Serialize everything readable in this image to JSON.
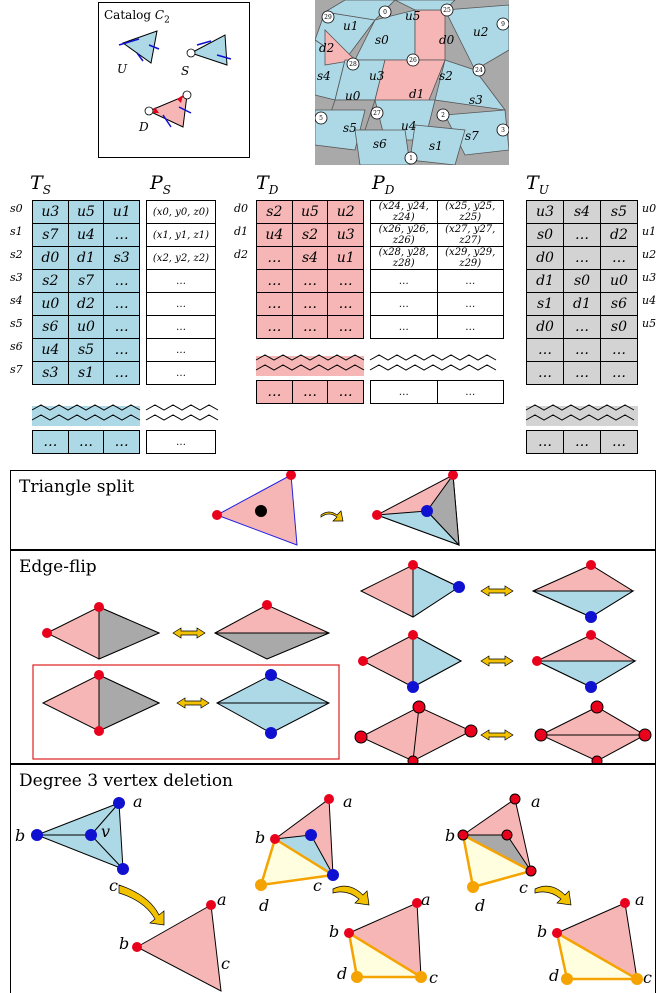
{
  "catalog": {
    "title_main": "Catalog ",
    "title_sub": "C",
    "title_subscript": "2",
    "labels": [
      "U",
      "S",
      "D"
    ]
  },
  "mesh": {
    "face_labels": [
      "u1",
      "s0",
      "u5",
      "d0",
      "u2",
      "d2",
      "s4",
      "u3",
      "s2",
      "d1",
      "s3",
      "u0",
      "s5",
      "u4",
      "s7",
      "s6",
      "s1"
    ],
    "vertex_labels": [
      "29",
      "0",
      "25",
      "9",
      "28",
      "26",
      "24",
      "27",
      "2",
      "5",
      "3",
      "1"
    ]
  },
  "tables": {
    "TS": {
      "name": "T",
      "sub": "S",
      "row_labels": [
        "s0",
        "s1",
        "s2",
        "s3",
        "s4",
        "s5",
        "s6",
        "s7"
      ],
      "rows": [
        [
          "u3",
          "u5",
          "u1"
        ],
        [
          "s7",
          "u4",
          "…"
        ],
        [
          "d0",
          "d1",
          "s3"
        ],
        [
          "s2",
          "s7",
          "…"
        ],
        [
          "u0",
          "d2",
          "…"
        ],
        [
          "s6",
          "u0",
          "…"
        ],
        [
          "u4",
          "s5",
          "…"
        ],
        [
          "s3",
          "s1",
          "…"
        ]
      ],
      "tail": [
        [
          "…",
          "…",
          "…"
        ]
      ]
    },
    "PS": {
      "name": "P",
      "sub": "S",
      "rows": [
        "(x0, y0, z0)",
        "(x1, y1, z1)",
        "(x2, y2, z2)",
        "…",
        "…",
        "…",
        "…",
        "…"
      ],
      "tail": [
        "…"
      ]
    },
    "TD": {
      "name": "T",
      "sub": "D",
      "row_labels": [
        "d0",
        "d1",
        "d2"
      ],
      "rows": [
        [
          "s2",
          "u5",
          "u2"
        ],
        [
          "u4",
          "s2",
          "u3"
        ],
        [
          "…",
          "s4",
          "u1"
        ],
        [
          "…",
          "…",
          "…"
        ],
        [
          "…",
          "…",
          "…"
        ],
        [
          "…",
          "…",
          "…"
        ]
      ],
      "tail": [
        [
          "…",
          "…",
          "…"
        ]
      ]
    },
    "PD": {
      "name": "P",
      "sub": "D",
      "rows": [
        [
          "(x24, y24, z24)",
          "(x25, y25, z25)"
        ],
        [
          "(x26, y26, z26)",
          "(x27, y27, z27)"
        ],
        [
          "(x28, y28, z28)",
          "(x29, y29, z29)"
        ],
        [
          "…",
          "…"
        ],
        [
          "…",
          "…"
        ],
        [
          "…",
          "…"
        ]
      ],
      "tail": [
        [
          "…",
          "…"
        ]
      ]
    },
    "TU": {
      "name": "T",
      "sub": "U",
      "row_labels": [
        "u0",
        "u1",
        "u2",
        "u3",
        "u4",
        "u5"
      ],
      "rows": [
        [
          "u3",
          "s4",
          "s5"
        ],
        [
          "s0",
          "…",
          "d2"
        ],
        [
          "d0",
          "…",
          "…"
        ],
        [
          "d1",
          "s0",
          "u0"
        ],
        [
          "s1",
          "d1",
          "s6"
        ],
        [
          "d0",
          "…",
          "s0"
        ],
        [
          "…",
          "…",
          "…"
        ],
        [
          "…",
          "…",
          "…"
        ]
      ],
      "tail": [
        [
          "…",
          "…",
          "…"
        ]
      ]
    }
  },
  "sections": {
    "triangle_split": "Triangle split",
    "edge_flip": "Edge-flip",
    "degree3": "Degree 3 vertex deletion"
  },
  "vertex_letters": {
    "a": "a",
    "b": "b",
    "c": "c",
    "d": "d",
    "v": "v"
  },
  "colors": {
    "blue_face": "#add8e6",
    "pink_face": "#f7b6b6",
    "gray_face": "#a9a9a9",
    "red_vertex": "#e8001c",
    "blue_vertex": "#1010d0",
    "orange_vertex": "#f5a300",
    "arrow": "#f2c200",
    "highlight_box": "#e02020"
  }
}
